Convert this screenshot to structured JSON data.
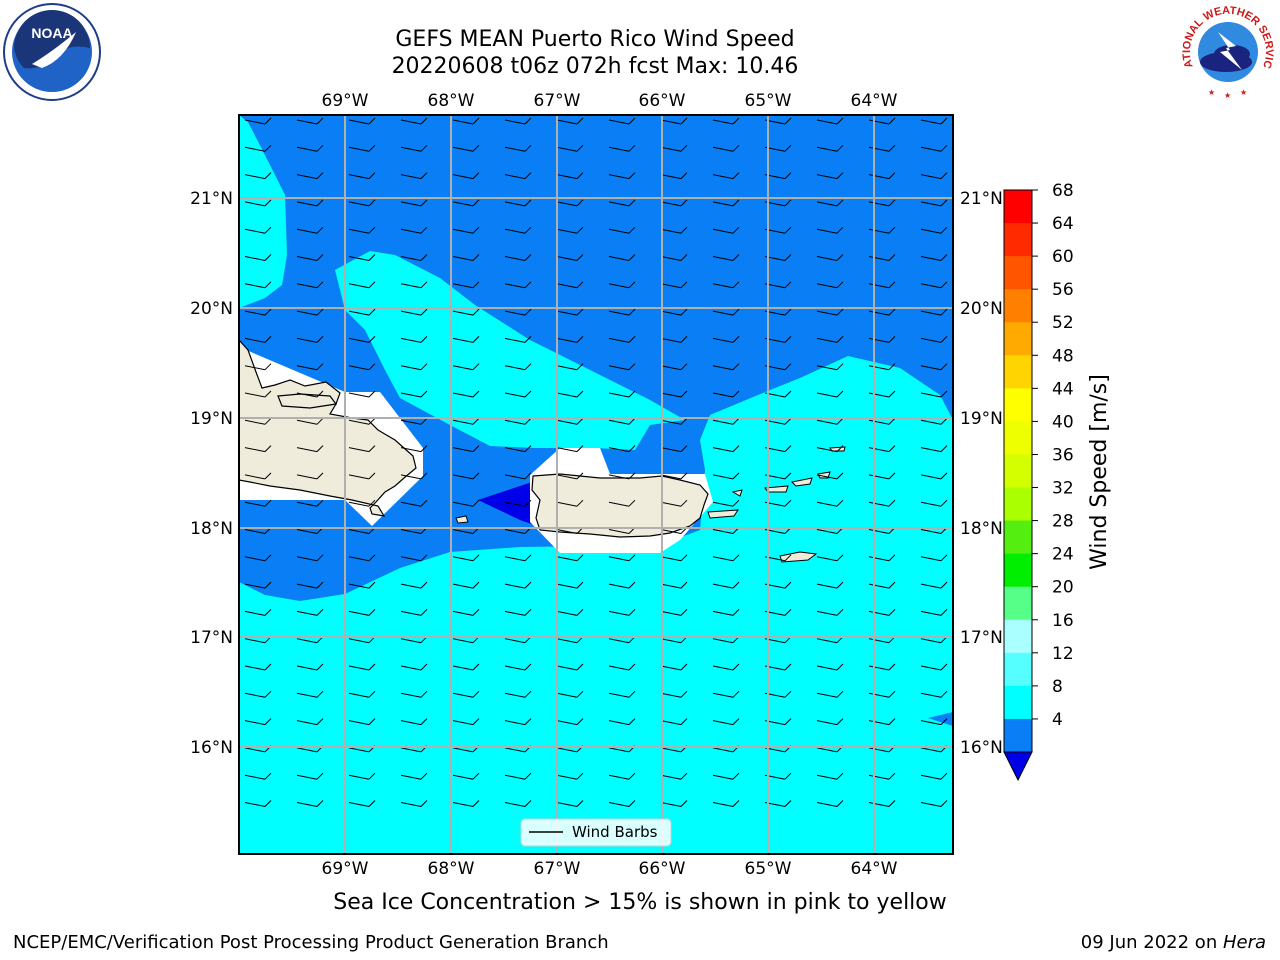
{
  "header": {
    "title_line1": "GEFS MEAN Puerto Rico Wind Speed",
    "title_line2": "20220608 t06z 072h fcst   Max: 10.46"
  },
  "map": {
    "lon_labels": [
      "69°W",
      "68°W",
      "67°W",
      "66°W",
      "65°W",
      "64°W"
    ],
    "lat_labels": [
      "21°N",
      "20°N",
      "19°N",
      "18°N",
      "17°N",
      "16°N"
    ],
    "legend_label": "Wind Barbs",
    "wind_direction": "from east",
    "colors": {
      "land": "#efecdc",
      "speed_4_8": "#0a7ff5",
      "speed_8_12": "#00ffff",
      "speed_below_4": "#0000e8"
    }
  },
  "colorbar": {
    "label": "Wind Speed [m/s]",
    "ticks": [
      "68",
      "64",
      "60",
      "56",
      "52",
      "48",
      "44",
      "40",
      "36",
      "32",
      "28",
      "24",
      "20",
      "16",
      "12",
      "8",
      "4"
    ],
    "colors": [
      "#ff0000",
      "#ff2a00",
      "#ff5500",
      "#ff8000",
      "#ffaa00",
      "#ffd400",
      "#ffff00",
      "#eeff00",
      "#d4ff00",
      "#aaff00",
      "#55ee11",
      "#00ee00",
      "#55ff88",
      "#aaffff",
      "#55ffff",
      "#00ffff",
      "#0a7ff5"
    ],
    "under_color": "#0000e8"
  },
  "footer": {
    "note": "Sea Ice Concentration > 15% is shown in pink to yellow",
    "left": "NCEP/EMC/Verification Post Processing Product Generation Branch",
    "right_prefix": "09 Jun 2022 on ",
    "right_host": "Hera"
  },
  "logos": {
    "noaa": "NOAA",
    "nws": "NATIONAL WEATHER SERVICE"
  }
}
